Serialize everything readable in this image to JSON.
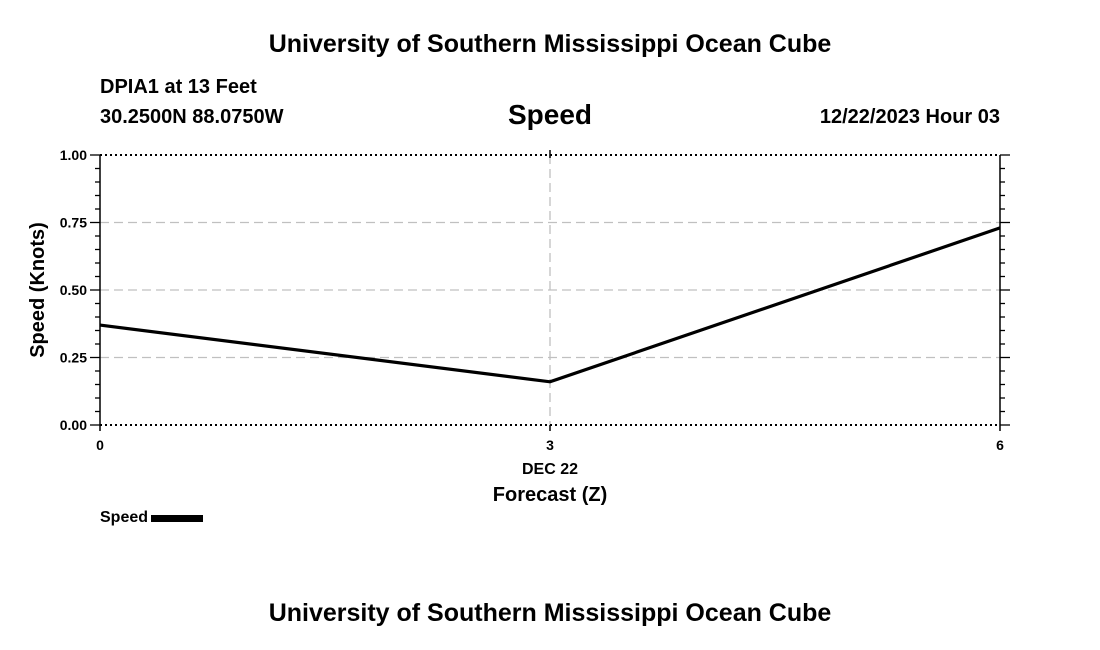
{
  "banner_top": "University of Southern Mississippi Ocean Cube",
  "banner_bottom": "University of Southern Mississippi Ocean Cube",
  "header": {
    "station": "DPIA1 at 13 Feet",
    "coords": "30.2500N  88.0750W",
    "datetime": "12/22/2023 Hour 03"
  },
  "legend": {
    "label": "Speed"
  },
  "colors": {
    "line": "#000000",
    "grid": "#c0c0c0",
    "axis": "#000000"
  },
  "chart_data": {
    "type": "line",
    "title": "Speed",
    "ylabel": "Speed (Knots)",
    "xlabel": "Forecast (Z)",
    "x_date_label": "DEC 22",
    "xlim": [
      0,
      6
    ],
    "ylim": [
      0,
      1
    ],
    "x_ticks": [
      0,
      3,
      6
    ],
    "x_tick_labels": [
      "0",
      "3",
      "6"
    ],
    "y_ticks": [
      0,
      0.25,
      0.5,
      0.75,
      1.0
    ],
    "y_tick_labels": [
      "0.00",
      "0.25",
      "0.50",
      "0.75",
      "1.00"
    ],
    "grid": true,
    "series": [
      {
        "name": "Speed",
        "x": [
          0,
          3,
          6
        ],
        "values": [
          0.37,
          0.16,
          0.73
        ]
      }
    ]
  }
}
